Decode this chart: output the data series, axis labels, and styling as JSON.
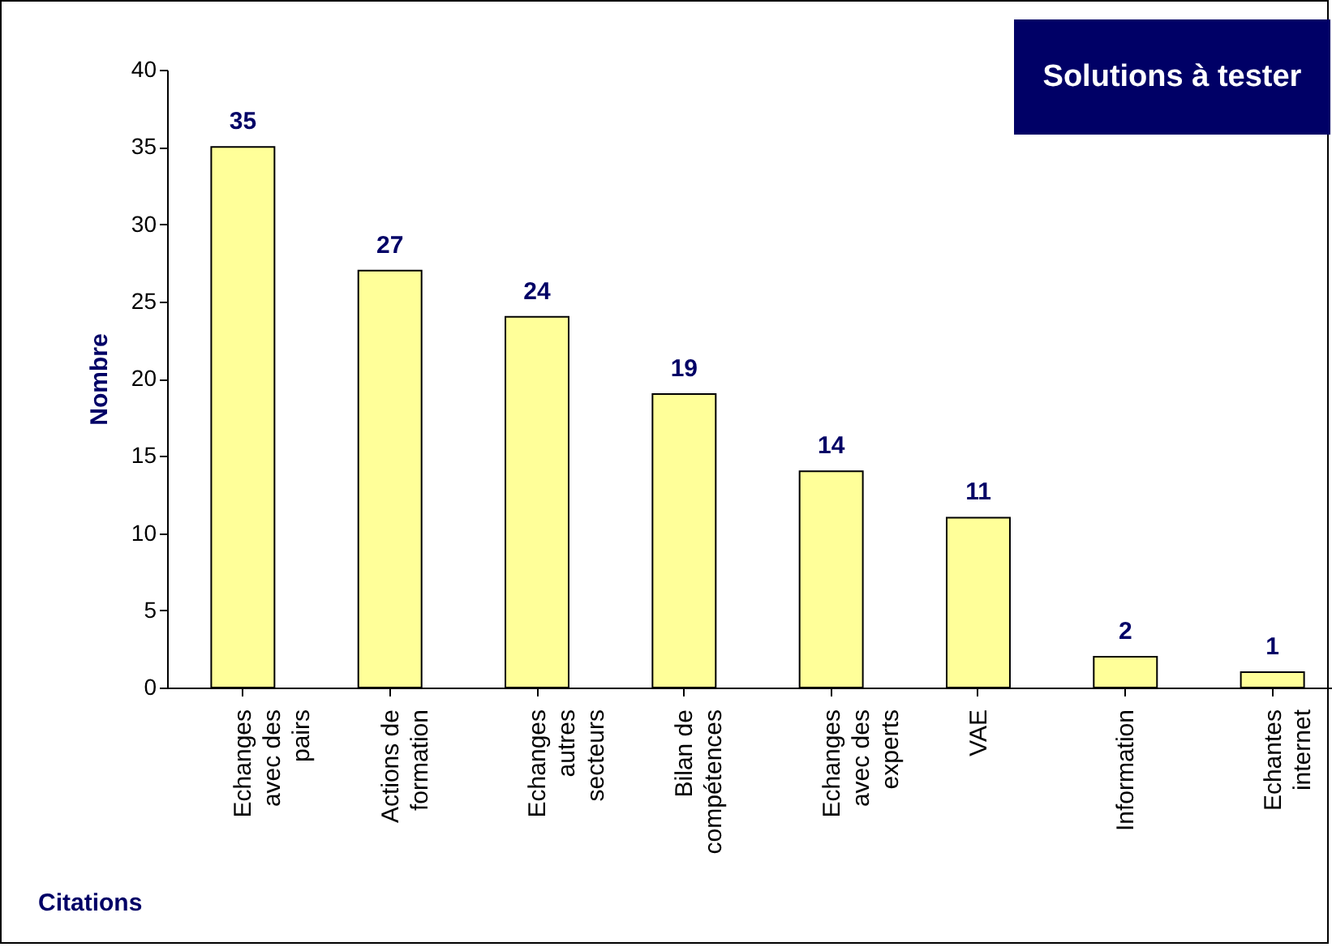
{
  "chart_data": {
    "type": "bar",
    "title": "Solutions à tester",
    "xlabel": "Citations",
    "ylabel": "Nombre",
    "categories": [
      "Echanges avec des pairs",
      "Actions de formation",
      "Echanges autres secteurs",
      "Bilan de compétences",
      "Echanges avec des experts",
      "VAE",
      "Information",
      "Echantes internet"
    ],
    "values": [
      35,
      27,
      24,
      19,
      14,
      11,
      2,
      1
    ],
    "color": "#ffff99",
    "ylim": [
      0,
      40
    ],
    "yticks": [
      0,
      5,
      10,
      15,
      20,
      25,
      30,
      35,
      40
    ],
    "grid": false,
    "data_labels": true
  }
}
